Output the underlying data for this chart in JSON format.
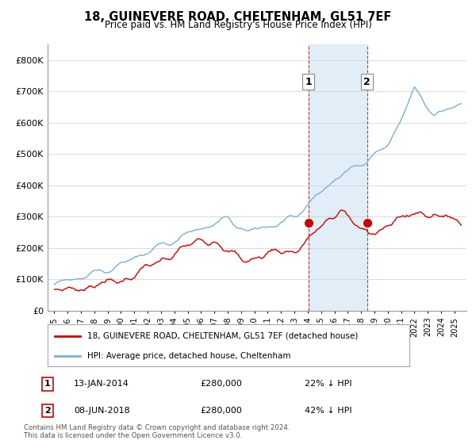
{
  "title": "18, GUINEVERE ROAD, CHELTENHAM, GL51 7EF",
  "subtitle": "Price paid vs. HM Land Registry's House Price Index (HPI)",
  "ylim": [
    0,
    850000
  ],
  "yticks": [
    0,
    100000,
    200000,
    300000,
    400000,
    500000,
    600000,
    700000,
    800000
  ],
  "sale1_date": 2014.04,
  "sale1_price": 280000,
  "sale1_label": "1",
  "sale2_date": 2018.44,
  "sale2_price": 280000,
  "sale2_label": "2",
  "hpi_color": "#7ab0d4",
  "price_color": "#cc0000",
  "shaded_color": "#d6e8f5",
  "legend_label1": "18, GUINEVERE ROAD, CHELTENHAM, GL51 7EF (detached house)",
  "legend_label2": "HPI: Average price, detached house, Cheltenham",
  "footnote1": "Contains HM Land Registry data © Crown copyright and database right 2024.",
  "footnote2": "This data is licensed under the Open Government Licence v3.0.",
  "table_row1": [
    "1",
    "13-JAN-2014",
    "£280,000",
    "22% ↓ HPI"
  ],
  "table_row2": [
    "2",
    "08-JUN-2018",
    "£280,000",
    "42% ↓ HPI"
  ]
}
